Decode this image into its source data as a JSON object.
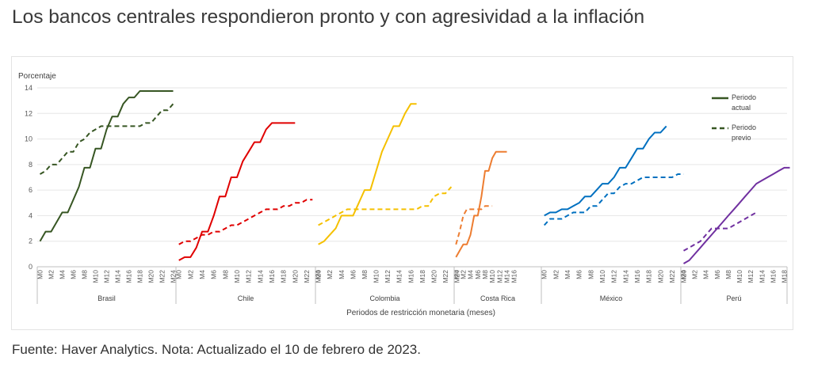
{
  "header": {
    "title": "Los bancos centrales respondieron pronto y con agresividad a la inflación"
  },
  "footer": {
    "note": "Fuente: Haver Analytics. Nota: Actualizado el 10 de febrero de 2023."
  },
  "chart_data": {
    "type": "line",
    "ylabel": "Porcentaje",
    "xlabel": "Periodos de restricción monetaria (meses)",
    "ylim": [
      0,
      14
    ],
    "yticks": [
      0,
      2,
      4,
      6,
      8,
      10,
      12,
      14
    ],
    "grid": true,
    "legend": {
      "position": "top-right",
      "entries": [
        {
          "lines": [
            "Periodo",
            "actual"
          ],
          "style": "solid"
        },
        {
          "lines": [
            "Periodo",
            "previo"
          ],
          "style": "dashed"
        }
      ]
    },
    "panels": [
      {
        "name": "Brasil",
        "color": "#375623",
        "months": 25,
        "ticks": [
          "M0",
          "M2",
          "M4",
          "M6",
          "M8",
          "M10",
          "M12",
          "M14",
          "M16",
          "M18",
          "M20",
          "M22",
          "M24"
        ],
        "actual": [
          2.0,
          2.75,
          2.75,
          3.5,
          4.25,
          4.25,
          5.25,
          6.25,
          7.75,
          7.75,
          9.25,
          9.25,
          10.75,
          11.75,
          11.75,
          12.75,
          13.25,
          13.25,
          13.75,
          13.75,
          13.75,
          13.75,
          13.75,
          13.75,
          13.75
        ],
        "previous": [
          7.25,
          7.5,
          8.0,
          8.0,
          8.5,
          9.0,
          9.0,
          9.75,
          10.0,
          10.5,
          10.75,
          11.0,
          11.0,
          11.0,
          11.0,
          11.0,
          11.0,
          11.0,
          11.0,
          11.25,
          11.25,
          11.75,
          12.25,
          12.25,
          12.75
        ]
      },
      {
        "name": "Chile",
        "color": "#e00000",
        "months": 24,
        "ticks": [
          "M0",
          "M2",
          "M4",
          "M6",
          "M8",
          "M10",
          "M12",
          "M14",
          "M16",
          "M18",
          "M20",
          "M22",
          "M24"
        ],
        "actual": [
          0.5,
          0.75,
          0.75,
          1.5,
          2.75,
          2.75,
          4.0,
          5.5,
          5.5,
          7.0,
          7.0,
          8.25,
          9.0,
          9.75,
          9.75,
          10.75,
          11.25,
          11.25,
          11.25,
          11.25,
          11.25
        ],
        "previous": [
          1.75,
          2.0,
          2.0,
          2.25,
          2.5,
          2.5,
          2.75,
          2.75,
          3.0,
          3.25,
          3.25,
          3.5,
          3.75,
          4.0,
          4.25,
          4.5,
          4.5,
          4.5,
          4.75,
          4.75,
          5.0,
          5.0,
          5.25,
          5.25
        ]
      },
      {
        "name": "Colombia",
        "color": "#f5c000",
        "months": 24,
        "ticks": [
          "M0",
          "M2",
          "M4",
          "M6",
          "M8",
          "M10",
          "M12",
          "M14",
          "M16",
          "M18",
          "M20",
          "M22",
          "M24"
        ],
        "actual": [
          1.75,
          2.0,
          2.5,
          3.0,
          4.0,
          4.0,
          4.0,
          5.0,
          6.0,
          6.0,
          7.5,
          9.0,
          10.0,
          11.0,
          11.0,
          12.0,
          12.75,
          12.75
        ],
        "previous": [
          3.25,
          3.5,
          3.75,
          4.0,
          4.25,
          4.5,
          4.5,
          4.5,
          4.5,
          4.5,
          4.5,
          4.5,
          4.5,
          4.5,
          4.5,
          4.5,
          4.5,
          4.5,
          4.75,
          4.75,
          5.5,
          5.75,
          5.75,
          6.25
        ]
      },
      {
        "name": "Costa Rica",
        "color": "#ed7d31",
        "months": 24,
        "ticks": [
          "M0",
          "M2",
          "M4",
          "M6",
          "M8",
          "M10",
          "M12",
          "M14",
          "M16"
        ],
        "actual": [
          0.75,
          1.25,
          1.75,
          1.75,
          2.5,
          4.0,
          4.0,
          5.5,
          7.5,
          7.5,
          8.5,
          9.0,
          9.0,
          9.0,
          9.0
        ],
        "previous": [
          1.75,
          2.75,
          4.0,
          4.5,
          4.5,
          4.5,
          4.5,
          4.5,
          4.75,
          4.75,
          4.75
        ]
      },
      {
        "name": "México",
        "color": "#0070c0",
        "months": 24,
        "ticks": [
          "M0",
          "M2",
          "M4",
          "M6",
          "M8",
          "M10",
          "M12",
          "M14",
          "M16",
          "M18",
          "M20",
          "M22",
          "M24"
        ],
        "actual": [
          4.0,
          4.25,
          4.25,
          4.5,
          4.5,
          4.75,
          5.0,
          5.5,
          5.5,
          6.0,
          6.5,
          6.5,
          7.0,
          7.75,
          7.75,
          8.5,
          9.25,
          9.25,
          10.0,
          10.5,
          10.5,
          11.0
        ],
        "previous": [
          3.25,
          3.75,
          3.75,
          3.75,
          4.0,
          4.25,
          4.25,
          4.25,
          4.75,
          4.75,
          5.25,
          5.75,
          5.75,
          6.25,
          6.5,
          6.5,
          6.75,
          7.0,
          7.0,
          7.0,
          7.0,
          7.0,
          7.0,
          7.25,
          7.25
        ]
      },
      {
        "name": "Perú",
        "color": "#7030a0",
        "months": 19,
        "ticks": [
          "M0",
          "M2",
          "M4",
          "M6",
          "M8",
          "M10",
          "M12",
          "M14",
          "M16",
          "M18"
        ],
        "actual": [
          0.25,
          0.5,
          1.0,
          1.5,
          2.0,
          2.5,
          3.0,
          3.5,
          4.0,
          4.5,
          5.0,
          5.5,
          6.0,
          6.5,
          6.75,
          7.0,
          7.25,
          7.5,
          7.75,
          7.75
        ],
        "previous": [
          1.25,
          1.5,
          1.75,
          2.0,
          2.5,
          3.0,
          3.0,
          3.0,
          3.0,
          3.25,
          3.5,
          3.75,
          4.0,
          4.25
        ]
      }
    ]
  }
}
